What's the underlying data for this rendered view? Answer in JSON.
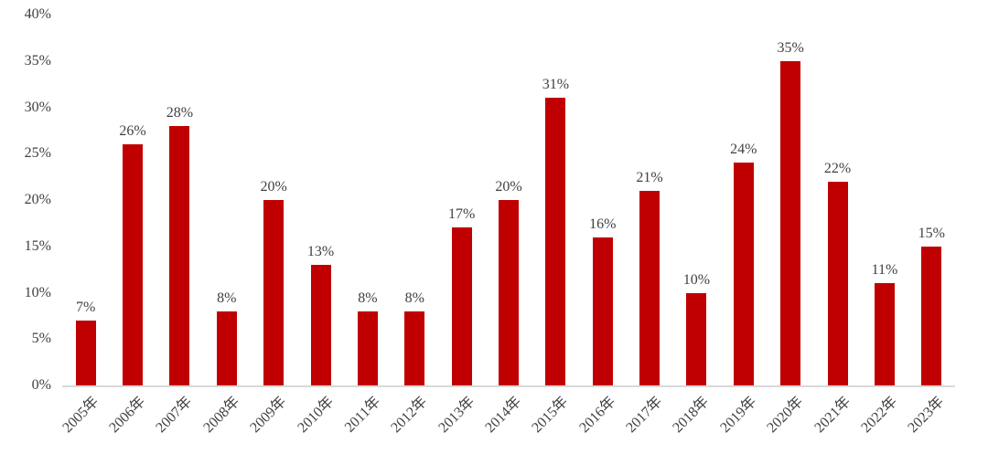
{
  "chart_data": {
    "type": "bar",
    "title": "",
    "xlabel": "",
    "ylabel": "",
    "categories": [
      "2005年",
      "2006年",
      "2007年",
      "2008年",
      "2009年",
      "2010年",
      "2011年",
      "2012年",
      "2013年",
      "2014年",
      "2015年",
      "2016年",
      "2017年",
      "2018年",
      "2019年",
      "2020年",
      "2021年",
      "2022年",
      "2023年"
    ],
    "values": [
      7,
      26,
      28,
      8,
      20,
      13,
      8,
      8,
      17,
      20,
      31,
      16,
      21,
      10,
      24,
      35,
      22,
      11,
      15
    ],
    "data_labels": [
      "7%",
      "26%",
      "28%",
      "8%",
      "20%",
      "13%",
      "8%",
      "8%",
      "17%",
      "20%",
      "31%",
      "16%",
      "21%",
      "10%",
      "24%",
      "35%",
      "22%",
      "11%",
      "15%"
    ],
    "ylim": [
      0,
      40
    ],
    "ytick_values": [
      40,
      35,
      30,
      25,
      20,
      15,
      10,
      5,
      0
    ],
    "ytick_labels": [
      "40%",
      "35%",
      "30%",
      "25%",
      "20%",
      "15%",
      "10%",
      "5%",
      "0%"
    ],
    "grid": false,
    "legend_position": "none",
    "bar_color": "#c00000",
    "axis_line_color": "#d9d9d9",
    "text_color": "#404040",
    "background_color": "#ffffff",
    "x_label_rotation_deg": -45
  }
}
